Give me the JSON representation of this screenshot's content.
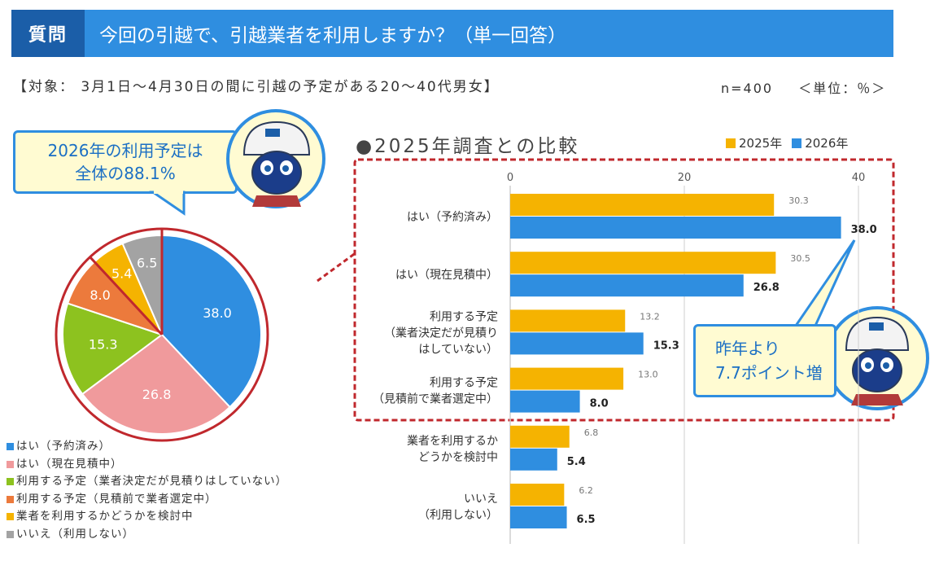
{
  "header": {
    "tag": "質問",
    "title": "今回の引越で、引越業者を利用しますか？（単一回答）"
  },
  "target_note": "【対象： 3月1日～4月30日の間に引越の予定がある20～40代男女】",
  "sample_note": "n=400",
  "unit_note": "＜単位：％＞",
  "callout_left": {
    "line1": "2026年の利用予定は",
    "line2": "全体の88.1%"
  },
  "callout_right": {
    "line1": "昨年より",
    "line2": "7.7ポイント増"
  },
  "colors": {
    "y2025": "#f5b301",
    "y2026": "#2f8ee0",
    "header": "#2f8ee0",
    "header_tag": "#1b5ea8",
    "highlight": "#c0282d"
  },
  "chart_data": [
    {
      "type": "pie",
      "categories": [
        "はい（予約済み）",
        "はい（現在見積中）",
        "利用する予定（業者決定だが見積りはしていない）",
        "利用する予定（見積前で業者選定中）",
        "業者を利用するかどうかを検討中",
        "いいえ（利用しない）"
      ],
      "values": [
        38.0,
        26.8,
        15.3,
        8.0,
        5.4,
        6.5
      ],
      "value_labels": [
        "38.0",
        "26.8",
        "15.3",
        "8.0",
        "5.4",
        "6.5"
      ],
      "colors": [
        "#2f8ee0",
        "#f09a9c",
        "#8dc21f",
        "#ec7a3c",
        "#f5b301",
        "#a3a3a3"
      ],
      "legend_labels": [
        "はい（予約済み）",
        "はい（現在見積中）",
        "利用する予定（業者決定だが見積りはしていない）",
        "利用する予定（見積前で業者選定中）",
        "業者を利用するかどうかを検討中",
        "いいえ（利用しない）"
      ],
      "legend_position": "bottom-left"
    },
    {
      "type": "bar",
      "title": "●2025年調査との比較",
      "orientation": "horizontal",
      "categories": [
        [
          "はい（予約済み）"
        ],
        [
          "はい（現在見積中）"
        ],
        [
          "利用する予定",
          "（業者決定だが見積り",
          "はしていない）"
        ],
        [
          "利用する予定",
          "（見積前で業者選定中）"
        ],
        [
          "業者を利用するか",
          "どうかを検討中"
        ],
        [
          "いいえ",
          "（利用しない）"
        ]
      ],
      "series": [
        {
          "name": "2025年",
          "values": [
            30.3,
            30.5,
            13.2,
            13.0,
            6.8,
            6.2
          ],
          "labels": [
            "30.3",
            "30.5",
            "13.2",
            "13.0",
            "6.8",
            "6.2"
          ]
        },
        {
          "name": "2026年",
          "values": [
            38.0,
            26.8,
            15.3,
            8.0,
            5.4,
            6.5
          ],
          "labels": [
            "38.0",
            "26.8",
            "15.3",
            "8.0",
            "5.4",
            "6.5"
          ]
        }
      ],
      "xlim": [
        0,
        44
      ],
      "xticks": [
        0,
        20,
        40
      ],
      "xtick_labels": [
        "0",
        "20",
        "40"
      ],
      "grid": true,
      "legend_position": "top-right"
    }
  ]
}
